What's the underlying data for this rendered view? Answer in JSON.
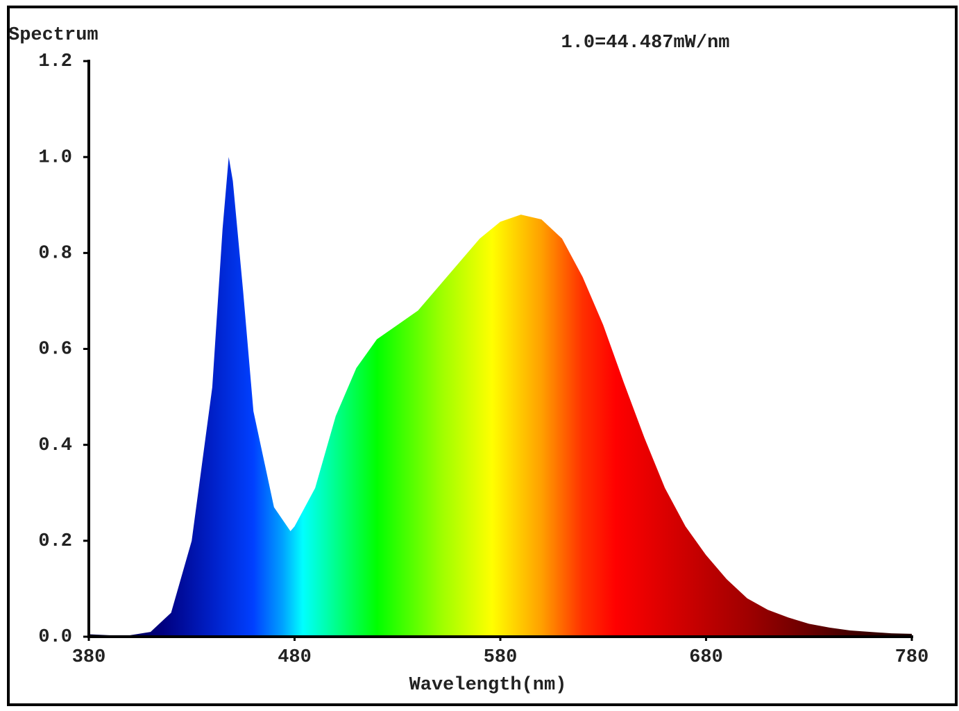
{
  "chart_data": {
    "type": "area",
    "title": "Spectrum",
    "annotation": "1.0=44.487mW/nm",
    "x_label": "Wavelength(nm)",
    "x": [
      380,
      390,
      400,
      410,
      420,
      430,
      440,
      445,
      448,
      450,
      455,
      460,
      470,
      478,
      480,
      490,
      500,
      510,
      520,
      530,
      540,
      550,
      560,
      570,
      580,
      590,
      600,
      610,
      620,
      630,
      640,
      650,
      660,
      670,
      680,
      690,
      700,
      710,
      720,
      730,
      740,
      750,
      760,
      770,
      780
    ],
    "values": [
      0.005,
      0.003,
      0.003,
      0.01,
      0.05,
      0.2,
      0.52,
      0.85,
      1.0,
      0.95,
      0.72,
      0.47,
      0.27,
      0.22,
      0.23,
      0.31,
      0.46,
      0.56,
      0.62,
      0.65,
      0.68,
      0.73,
      0.78,
      0.83,
      0.865,
      0.88,
      0.87,
      0.83,
      0.75,
      0.65,
      0.53,
      0.415,
      0.31,
      0.23,
      0.17,
      0.12,
      0.08,
      0.056,
      0.04,
      0.027,
      0.019,
      0.013,
      0.01,
      0.007,
      0.006
    ],
    "xlim": [
      380,
      780
    ],
    "xticks": [
      380,
      480,
      580,
      680,
      780
    ],
    "ylim": [
      0,
      1.2
    ],
    "yticks": [
      {
        "value": 0,
        "label": "0.0"
      },
      {
        "value": 0.2,
        "label": "0.2"
      },
      {
        "value": 0.4,
        "label": "0.4"
      },
      {
        "value": 0.6,
        "label": "0.6"
      },
      {
        "value": 0.8,
        "label": "0.8"
      },
      {
        "value": 1,
        "label": "1.0"
      },
      {
        "value": 1.2,
        "label": "1.2"
      }
    ]
  }
}
